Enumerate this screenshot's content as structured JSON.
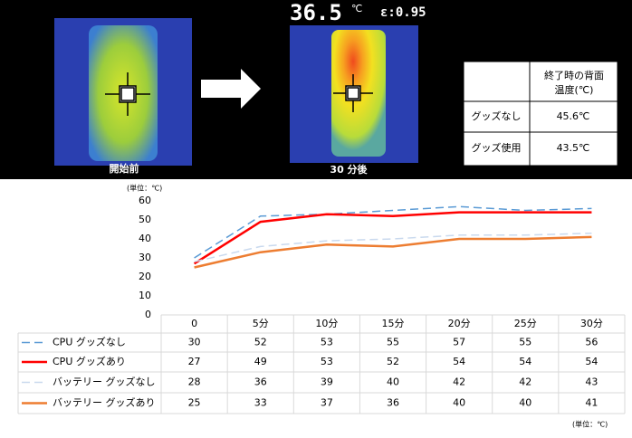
{
  "thermal": {
    "before_label": "開始前",
    "after_label": "30 分後",
    "temperature": "36.5",
    "unit": "℃",
    "emissivity": "ε:0.95"
  },
  "summary_table": {
    "header": "終了時の背面温度(℃)",
    "rows": [
      [
        "グッズなし",
        "45.6℃"
      ],
      [
        "グッズ使用",
        "43.5℃"
      ]
    ]
  },
  "chart_data": {
    "type": "line",
    "unit_top": "(単位：℃)",
    "unit_bottom": "(単位：℃)",
    "categories": [
      "0",
      "5分",
      "10分",
      "15分",
      "20分",
      "25分",
      "30分"
    ],
    "series": [
      {
        "name": "CPU グッズなし",
        "color": "#5b9bd5",
        "style": "dashed",
        "values": [
          30,
          52,
          53,
          55,
          57,
          55,
          56
        ]
      },
      {
        "name": "CPU グッズあり",
        "color": "#ff0000",
        "style": "solid",
        "values": [
          27,
          49,
          53,
          52,
          54,
          54,
          54
        ]
      },
      {
        "name": "バッテリー グッズなし",
        "color": "#c9d9ee",
        "style": "dashed",
        "values": [
          28,
          36,
          39,
          40,
          42,
          42,
          43
        ]
      },
      {
        "name": "バッテリー グッズあり",
        "color": "#ed7d31",
        "style": "solid",
        "values": [
          25,
          33,
          37,
          36,
          40,
          40,
          41
        ]
      }
    ],
    "ylim": [
      0,
      60
    ],
    "yticks": [
      0,
      10,
      20,
      30,
      40,
      50,
      60
    ],
    "grid": false
  }
}
